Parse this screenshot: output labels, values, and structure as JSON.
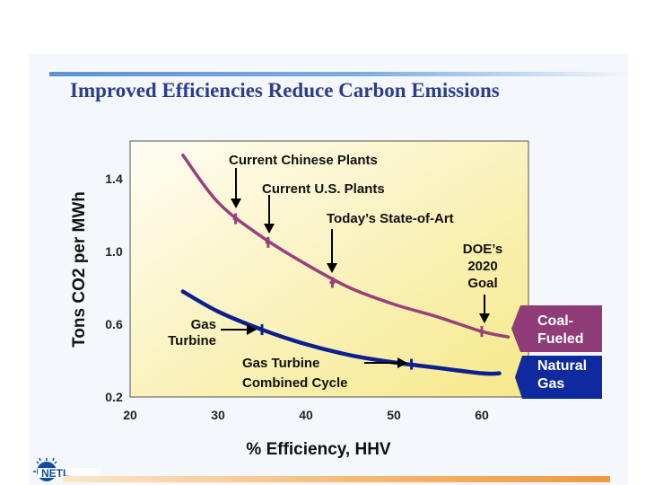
{
  "title": "Improved Efficiencies Reduce Carbon Emissions",
  "logo_text": "NETL",
  "colors": {
    "title": "#2b3e8e",
    "coal_series": "#9a3f7a",
    "gas_series": "#0d1f8f",
    "coal_tag": "#8f3c78",
    "gas_tag": "#0f2a9e"
  },
  "chart_data": {
    "type": "line",
    "xlabel": "% Efficiency, HHV",
    "ylabel": "Tons CO2 per MWh",
    "xlim": [
      20,
      65
    ],
    "ylim": [
      0.2,
      1.6
    ],
    "xticks": [
      "20",
      "30",
      "40",
      "50",
      "60"
    ],
    "yticks": [
      "0.2",
      "0.6",
      "1.0",
      "1.4"
    ],
    "grid": false,
    "series": [
      {
        "name": "Coal-Fueled",
        "x": [
          26,
          30,
          35,
          40,
          45,
          50,
          55,
          60,
          63
        ],
        "y": [
          1.53,
          1.27,
          1.08,
          0.93,
          0.8,
          0.71,
          0.64,
          0.56,
          0.53
        ]
      },
      {
        "name": "Natural Gas",
        "x": [
          26,
          30,
          35,
          40,
          45,
          50,
          55,
          60,
          62
        ],
        "y": [
          0.78,
          0.67,
          0.57,
          0.49,
          0.43,
          0.39,
          0.36,
          0.33,
          0.33
        ]
      }
    ],
    "markers": [
      {
        "series": 0,
        "x": 32,
        "y": 1.18
      },
      {
        "series": 0,
        "x": 35.7,
        "y": 1.05
      },
      {
        "series": 0,
        "x": 43,
        "y": 0.83
      },
      {
        "series": 0,
        "x": 60,
        "y": 0.56
      },
      {
        "series": 1,
        "x": 35,
        "y": 0.57
      },
      {
        "series": 1,
        "x": 52,
        "y": 0.38
      }
    ],
    "annotations": [
      {
        "lines": [
          "Current Chinese Plants"
        ]
      },
      {
        "lines": [
          "Current U.S. Plants"
        ]
      },
      {
        "lines": [
          "Today’s State-of-Art"
        ]
      },
      {
        "lines": [
          "DOE’s",
          "2020",
          "Goal"
        ]
      },
      {
        "lines": [
          "Gas",
          "Turbine"
        ]
      },
      {
        "lines": [
          "Gas Turbine",
          "Combined Cycle"
        ]
      }
    ],
    "legend_tags": [
      {
        "lines": [
          "Coal-",
          "Fueled"
        ]
      },
      {
        "lines": [
          "Natural",
          "Gas"
        ]
      }
    ]
  }
}
